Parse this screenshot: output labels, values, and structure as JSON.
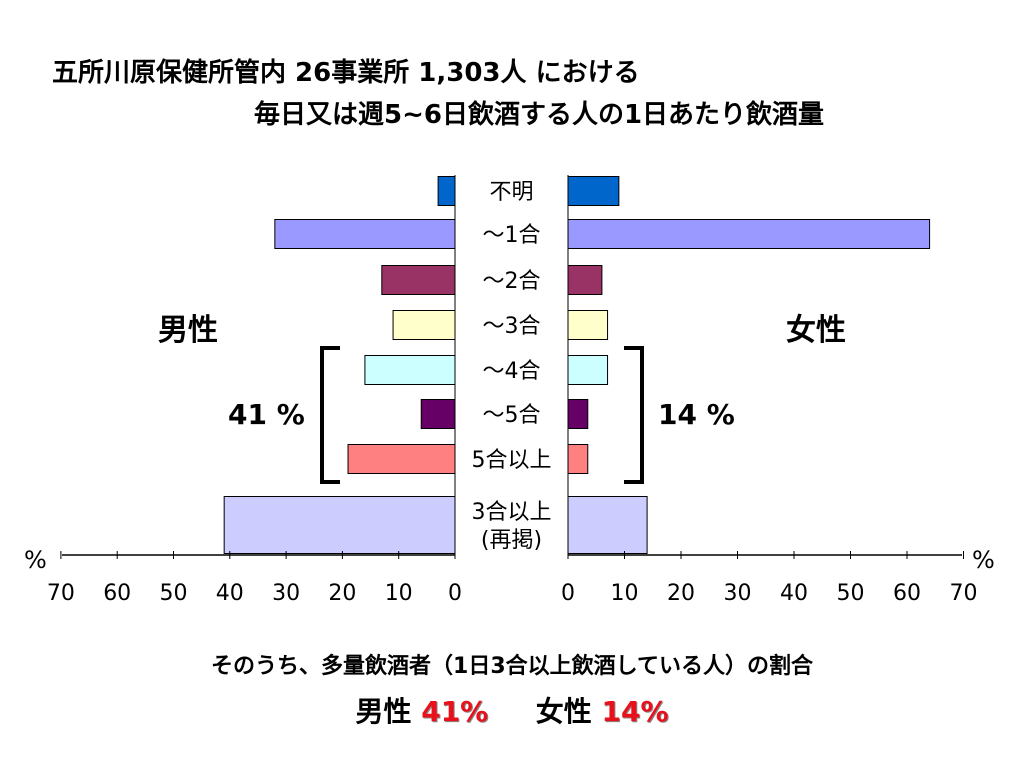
{
  "title": {
    "line1": "五所川原保健所管内 26事業所 1,303人 における",
    "line2": "毎日又は週5~6日飲酒する人の1日あたり飲酒量"
  },
  "labels": {
    "male": "男性",
    "female": "女性",
    "male_bracket_pct": "41 %",
    "female_bracket_pct": "14 %",
    "unit_left": "%",
    "unit_right": "%"
  },
  "footer": {
    "line1": "そのうち、多量飲酒者（1日3合以上飲酒している人）の割合",
    "male_label": "男性",
    "male_value": "41%",
    "female_label": "女性",
    "female_value": "14%"
  },
  "chart_data": {
    "type": "bar",
    "orientation": "horizontal-butterfly",
    "categories": [
      "不明",
      "～1合",
      "～2合",
      "～3合",
      "～4合",
      "～5合",
      "5合以上",
      "3合以上\n(再掲)"
    ],
    "series": [
      {
        "name": "男性",
        "values": [
          3,
          32,
          13,
          11,
          16,
          6,
          19,
          41
        ]
      },
      {
        "name": "女性",
        "values": [
          9,
          64,
          6,
          7,
          7,
          3.5,
          3.5,
          14
        ]
      }
    ],
    "colors": [
      "#0066cc",
      "#9999ff",
      "#993366",
      "#ffffcc",
      "#ccffff",
      "#660066",
      "#ff8080",
      "#ccccff"
    ],
    "xlim": [
      0,
      70
    ],
    "x_ticks": [
      0,
      10,
      20,
      30,
      40,
      50,
      60,
      70
    ],
    "grid": false
  }
}
